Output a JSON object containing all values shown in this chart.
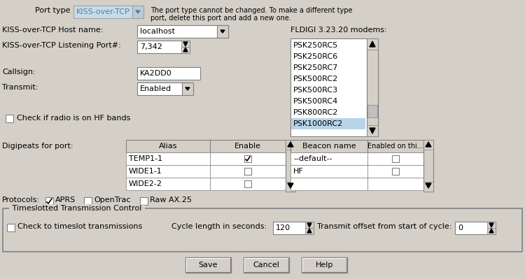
{
  "bg_color": "#d4d0c8",
  "white": "#ffffff",
  "light_blue_selected": "#b8d4e8",
  "border_color": "#808080",
  "title_text": "Port type",
  "port_type_value": "KISS-over-TCP",
  "port_type_desc": "The port type cannot be changed. To make a different type\nport, delete this port and add a new one.",
  "host_label": "KISS-over-TCP Host name:",
  "host_value": "localhost",
  "port_label": "KISS-over-TCP Listening Port#:",
  "port_value": "7,342",
  "callsign_label": "Callsign:",
  "callsign_value": "KA2DD0",
  "transmit_label": "Transmit:",
  "transmit_value": "Enabled",
  "hf_check_label": "Check if radio is on HF bands",
  "fldigi_label": "FLDIGI 3.23.20 modems:",
  "modems": [
    "PSK250RC5",
    "PSK250RC6",
    "PSK250RC7",
    "PSK500RC2",
    "PSK500RC3",
    "PSK500RC4",
    "PSK800RC2",
    "PSK1000RC2"
  ],
  "selected_modem": "PSK1000RC2",
  "digipeats_label": "Digipeats for port:",
  "alias_col": "Alias",
  "enable_col": "Enable",
  "digipeats": [
    "TEMP1-1",
    "WIDE1-1",
    "WIDE2-2"
  ],
  "digipeats_enabled": [
    true,
    false,
    false
  ],
  "beacon_col": "Beacon name",
  "enabled_col": "Enabled on thi...",
  "beacons": [
    "--default--",
    "HF",
    ""
  ],
  "beacons_enabled": [
    false,
    false,
    false
  ],
  "protocols_label": "Protocols:",
  "aprs_checked": true,
  "aprs_label": "APRS",
  "opentrac_checked": false,
  "opentrac_label": "OpenTrac",
  "rawax25_checked": false,
  "rawax25_label": "Raw AX.25",
  "timeslot_group": "Timeslotted Transmission Control",
  "timeslot_check_label": "Check to timeslot transmissions",
  "cycle_label": "Cycle length in seconds:",
  "cycle_value": "120",
  "offset_label": "Transmit offset from start of cycle:",
  "offset_value": "0",
  "btn_save": "Save",
  "btn_cancel": "Cancel",
  "btn_help": "Help",
  "font_size": 8
}
